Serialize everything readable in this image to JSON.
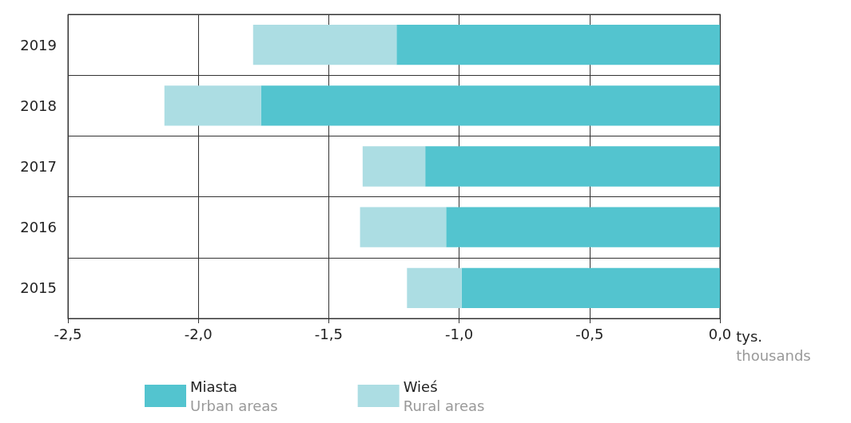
{
  "chart_data": {
    "type": "bar",
    "orientation": "horizontal",
    "stacked": true,
    "categories": [
      "2019",
      "2018",
      "2017",
      "2016",
      "2015"
    ],
    "xlabel": "tys.\nthousands",
    "series": [
      {
        "name": "Miasta\nUrban areas",
        "color": "#53c4cf",
        "values": [
          -1.24,
          -1.76,
          -1.13,
          -1.05,
          -0.99
        ]
      },
      {
        "name": "Wieś\nRural areas",
        "color": "#acdde3",
        "values": [
          -0.55,
          -0.37,
          -0.24,
          -0.33,
          -0.21
        ]
      }
    ],
    "xlim": [
      -2.5,
      0
    ],
    "xticks": [
      {
        "value": -2.5,
        "label": "-2,5"
      },
      {
        "value": -2,
        "label": "-2,0"
      },
      {
        "value": -1.5,
        "label": "-1,5"
      },
      {
        "value": -1,
        "label": "-1,0"
      },
      {
        "value": -0.5,
        "label": "-0,5"
      },
      {
        "value": 0,
        "label": "0,0"
      }
    ],
    "grid": true,
    "legend": "bottom"
  }
}
